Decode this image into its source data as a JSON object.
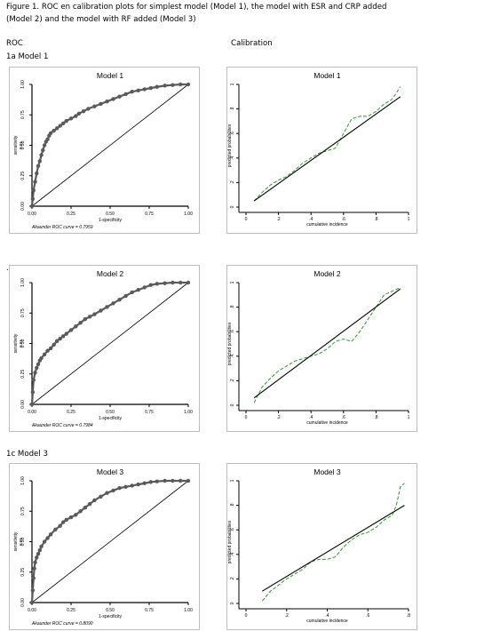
{
  "caption": {
    "line1": "Figure 1. ROC en calibration plots for simplest model (Model 1), the model with ESR and CRP added",
    "line2": "(Model 2) and the model with RF added (Model 3)"
  },
  "headers": {
    "roc": "ROC",
    "calibration": "Calibration"
  },
  "sections": [
    {
      "label": "1a Model 1"
    },
    {
      "label": ""
    },
    {
      "label": "1c Model 3"
    }
  ],
  "chart_data": [
    {
      "type": "scatter",
      "title": "Model 1",
      "xlabel": "1-specificity",
      "ylabel": "sensitivity",
      "ylabel2": "0.01",
      "note": "Akaunder ROC curve = 0.7959",
      "xlim": [
        0,
        1
      ],
      "ylim": [
        0,
        1
      ],
      "xticks": [
        "0.00",
        "0.25",
        "0.50",
        "0.75",
        "1.00"
      ],
      "yticks": [
        "0.00",
        "0.25",
        "0.50",
        "0.75",
        "1.00"
      ],
      "x": [
        0,
        0.005,
        0.01,
        0.02,
        0.03,
        0.04,
        0.05,
        0.06,
        0.07,
        0.08,
        0.09,
        0.1,
        0.11,
        0.12,
        0.14,
        0.16,
        0.18,
        0.2,
        0.22,
        0.25,
        0.28,
        0.3,
        0.33,
        0.36,
        0.4,
        0.44,
        0.48,
        0.52,
        0.56,
        0.6,
        0.64,
        0.68,
        0.72,
        0.76,
        0.8,
        0.85,
        0.9,
        0.95,
        1.0
      ],
      "y": [
        0,
        0.06,
        0.13,
        0.2,
        0.27,
        0.33,
        0.37,
        0.42,
        0.46,
        0.5,
        0.53,
        0.55,
        0.58,
        0.6,
        0.62,
        0.64,
        0.66,
        0.68,
        0.7,
        0.72,
        0.74,
        0.76,
        0.78,
        0.8,
        0.82,
        0.84,
        0.86,
        0.88,
        0.9,
        0.92,
        0.94,
        0.95,
        0.96,
        0.97,
        0.98,
        0.99,
        0.995,
        1.0,
        1.0
      ],
      "reference_line": [
        [
          0,
          0
        ],
        [
          1,
          1
        ]
      ]
    },
    {
      "type": "line",
      "title": "Model 1",
      "xlabel": "cumulative incidence",
      "ylabel": "predicted probabilities",
      "xlim": [
        0,
        1
      ],
      "ylim": [
        0,
        1
      ],
      "xticks": [
        "0",
        ".2",
        ".4",
        ".6",
        ".8",
        "1"
      ],
      "yticks": [
        "0",
        ".2",
        ".4",
        ".6",
        ".8",
        "1"
      ],
      "series": [
        {
          "style": "dashed",
          "color": "#2a9a2a",
          "x": [
            0.05,
            0.1,
            0.15,
            0.2,
            0.25,
            0.3,
            0.35,
            0.4,
            0.45,
            0.5,
            0.55,
            0.6,
            0.65,
            0.7,
            0.75,
            0.8,
            0.85,
            0.9,
            0.95
          ],
          "y": [
            0.05,
            0.12,
            0.18,
            0.22,
            0.25,
            0.3,
            0.36,
            0.4,
            0.44,
            0.46,
            0.48,
            0.6,
            0.72,
            0.74,
            0.74,
            0.78,
            0.84,
            0.88,
            0.98
          ]
        },
        {
          "style": "solid",
          "color": "#000000",
          "x": [
            0.05,
            0.95
          ],
          "y": [
            0.05,
            0.9
          ]
        }
      ]
    },
    {
      "type": "scatter",
      "title": "Model 2",
      "xlabel": "1-specificity",
      "ylabel": "sensitivity",
      "ylabel2": "0.01",
      "note": "Akaunder ROC curve = 0.7984",
      "xlim": [
        0,
        1
      ],
      "ylim": [
        0,
        1
      ],
      "xticks": [
        "0.00",
        "0.25",
        "0.50",
        "0.75",
        "1.00"
      ],
      "yticks": [
        "0.00",
        "0.25",
        "0.50",
        "0.75",
        "1.00"
      ],
      "x": [
        0,
        0.005,
        0.01,
        0.02,
        0.03,
        0.04,
        0.05,
        0.06,
        0.08,
        0.1,
        0.12,
        0.14,
        0.16,
        0.18,
        0.2,
        0.22,
        0.25,
        0.28,
        0.31,
        0.34,
        0.37,
        0.4,
        0.44,
        0.48,
        0.52,
        0.56,
        0.6,
        0.64,
        0.68,
        0.72,
        0.76,
        0.8,
        0.85,
        0.9,
        0.95,
        1.0
      ],
      "y": [
        0,
        0.1,
        0.2,
        0.26,
        0.3,
        0.33,
        0.36,
        0.38,
        0.41,
        0.44,
        0.46,
        0.49,
        0.52,
        0.54,
        0.56,
        0.58,
        0.61,
        0.64,
        0.67,
        0.7,
        0.72,
        0.74,
        0.77,
        0.8,
        0.83,
        0.86,
        0.89,
        0.92,
        0.94,
        0.96,
        0.98,
        0.99,
        0.995,
        1.0,
        1.0,
        1.0
      ],
      "reference_line": [
        [
          0,
          0
        ],
        [
          1,
          1
        ]
      ]
    },
    {
      "type": "line",
      "title": "Model 2",
      "xlabel": "cumulative incidence",
      "ylabel": "predicted probabilities",
      "xlim": [
        0,
        1
      ],
      "ylim": [
        0,
        1
      ],
      "xticks": [
        "0",
        ".2",
        ".4",
        ".6",
        ".8",
        "1"
      ],
      "yticks": [
        "0",
        ".2",
        ".4",
        ".6",
        ".8",
        "1"
      ],
      "series": [
        {
          "style": "dashed",
          "color": "#2a9a2a",
          "x": [
            0.05,
            0.1,
            0.15,
            0.2,
            0.25,
            0.3,
            0.35,
            0.4,
            0.45,
            0.5,
            0.55,
            0.6,
            0.65,
            0.7,
            0.75,
            0.8,
            0.85,
            0.9,
            0.95
          ],
          "y": [
            0.02,
            0.15,
            0.22,
            0.28,
            0.32,
            0.36,
            0.38,
            0.4,
            0.42,
            0.46,
            0.52,
            0.54,
            0.52,
            0.6,
            0.7,
            0.8,
            0.9,
            0.93,
            0.96
          ]
        },
        {
          "style": "solid",
          "color": "#000000",
          "x": [
            0.05,
            0.95
          ],
          "y": [
            0.06,
            0.95
          ]
        }
      ]
    },
    {
      "type": "scatter",
      "title": "Model 3",
      "xlabel": "1-specificity",
      "ylabel": "sensitivity",
      "ylabel2": "0.01",
      "note": "Akaunder ROC curve = 0.8090",
      "xlim": [
        0,
        1
      ],
      "ylim": [
        0,
        1
      ],
      "xticks": [
        "0.00",
        "0.25",
        "0.50",
        "0.75",
        "1.00"
      ],
      "yticks": [
        "0.00",
        "0.25",
        "0.50",
        "0.75",
        "1.00"
      ],
      "x": [
        0,
        0.005,
        0.01,
        0.015,
        0.02,
        0.03,
        0.04,
        0.05,
        0.06,
        0.08,
        0.1,
        0.12,
        0.15,
        0.18,
        0.2,
        0.22,
        0.25,
        0.28,
        0.31,
        0.34,
        0.37,
        0.4,
        0.44,
        0.48,
        0.52,
        0.56,
        0.6,
        0.64,
        0.68,
        0.72,
        0.76,
        0.8,
        0.85,
        0.9,
        0.95,
        1.0
      ],
      "y": [
        0,
        0.1,
        0.2,
        0.28,
        0.33,
        0.37,
        0.4,
        0.43,
        0.46,
        0.5,
        0.53,
        0.56,
        0.6,
        0.63,
        0.66,
        0.68,
        0.7,
        0.72,
        0.75,
        0.78,
        0.81,
        0.84,
        0.87,
        0.9,
        0.92,
        0.94,
        0.95,
        0.96,
        0.97,
        0.98,
        0.99,
        0.995,
        1.0,
        1.0,
        1.0,
        1.0
      ],
      "reference_line": [
        [
          0,
          0
        ],
        [
          1,
          1
        ]
      ]
    },
    {
      "type": "line",
      "title": "Model 3",
      "xlabel": "cumulative incidence",
      "ylabel": "predicted probabilities",
      "xlim": [
        0,
        0.8
      ],
      "ylim": [
        0,
        1
      ],
      "xticks": [
        "0",
        ".2",
        ".4",
        ".6",
        ".8"
      ],
      "yticks": [
        "0",
        ".2",
        ".4",
        ".6",
        ".8",
        "1"
      ],
      "series": [
        {
          "style": "dashed",
          "color": "#2a9a2a",
          "x": [
            0.08,
            0.12,
            0.16,
            0.2,
            0.24,
            0.28,
            0.32,
            0.36,
            0.4,
            0.44,
            0.48,
            0.52,
            0.56,
            0.6,
            0.64,
            0.68,
            0.72,
            0.74,
            0.76,
            0.78
          ],
          "y": [
            0.02,
            0.1,
            0.15,
            0.2,
            0.24,
            0.28,
            0.34,
            0.36,
            0.36,
            0.38,
            0.46,
            0.52,
            0.56,
            0.58,
            0.62,
            0.68,
            0.72,
            0.8,
            0.95,
            0.98
          ]
        },
        {
          "style": "solid",
          "color": "#000000",
          "x": [
            0.08,
            0.78
          ],
          "y": [
            0.1,
            0.8
          ]
        }
      ]
    }
  ]
}
